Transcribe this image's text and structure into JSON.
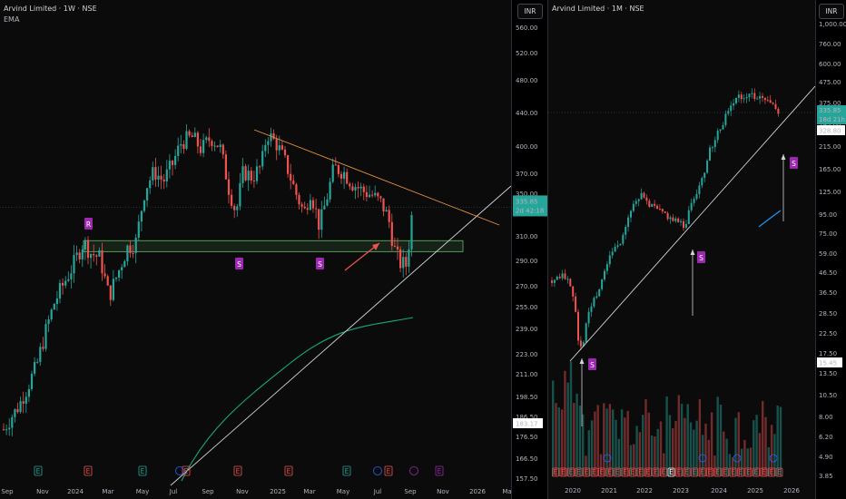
{
  "left_chart": {
    "legend_title": "Arvind Limited · 1W · NSE",
    "legend_indicator": "EMA",
    "currency_button": "INR",
    "price_axis": [
      "560.00",
      "520.00",
      "480.00",
      "440.00",
      "400.00",
      "370.00",
      "350.00",
      "330.00",
      "310.00",
      "290.00",
      "270.00",
      "255.00",
      "239.00",
      "223.00",
      "211.00",
      "198.50",
      "186.50",
      "176.50",
      "166.50",
      "157.50"
    ],
    "time_axis": [
      "Sep",
      "Nov",
      "2024",
      "Mar",
      "May",
      "Jul",
      "Sep",
      "Nov",
      "2025",
      "Mar",
      "May",
      "Jul",
      "Sep",
      "Nov",
      "2026",
      "Mar"
    ],
    "last_price": "335.85",
    "countdown": "2d 42:18",
    "low_label": "183.17",
    "labels": [
      "R",
      "S",
      "S"
    ],
    "colors": {
      "up": "#26a69a",
      "down": "#ef5350",
      "ema": "#1aa77d",
      "trend": "#d1d4dc",
      "resistance": "#e8913b",
      "zone": "#66bb6a",
      "label": "#9c27b0",
      "arrow": "#ef5350"
    }
  },
  "right_chart": {
    "legend_title": "Arvind Limited · 1M · NSE",
    "currency_button": "INR",
    "price_axis": [
      "1,000.00",
      "760.00",
      "600.00",
      "475.00",
      "375.00",
      "295.00",
      "215.00",
      "165.00",
      "125.00",
      "95.00",
      "75.00",
      "59.00",
      "46.50",
      "36.50",
      "28.50",
      "22.50",
      "17.50",
      "13.50",
      "10.50",
      "8.00",
      "6.20",
      "4.90",
      "3.85"
    ],
    "time_axis": [
      "2020",
      "2021",
      "2022",
      "2023",
      "2024",
      "2025",
      "2026"
    ],
    "last_price": "335.85",
    "countdown": "18d 21h",
    "secondary_price": "328.80",
    "low_label": "15.45",
    "labels": [
      "S",
      "S",
      "S"
    ],
    "colors": {
      "up": "#26a69a",
      "down": "#ef5350",
      "ema": "#2196f3",
      "trend": "#d1d4dc",
      "label": "#9c27b0"
    }
  }
}
